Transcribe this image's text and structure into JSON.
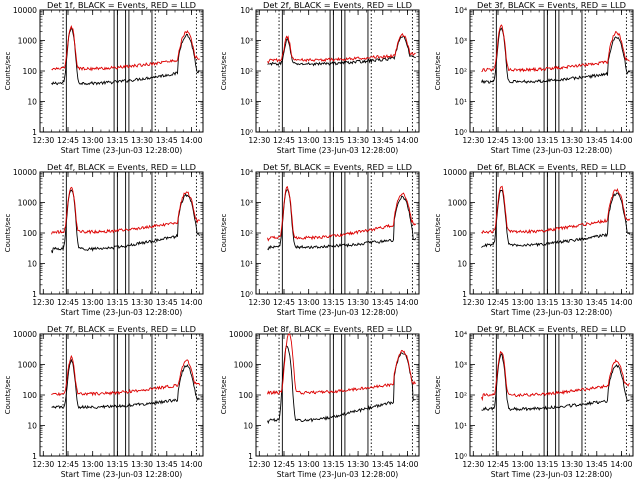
{
  "figure": {
    "x_tick_labels": [
      "12:30",
      "12:45",
      "13:00",
      "13:15",
      "13:30",
      "13:45",
      "14:00"
    ],
    "ylabel": "Counts/sec",
    "xlabel": "Start Time (23-Jun-03 12:28:00)",
    "colors": {
      "events": "#000000",
      "lld": "#dd0000",
      "axes": "#000000",
      "background": "#ffffff"
    }
  },
  "chart_data": [
    {
      "type": "line",
      "title": "Det 1f, BLACK = Events, RED = LLD",
      "tick_style": "plain",
      "ylim": [
        1,
        10000
      ],
      "ytick_labels": [
        "1",
        "10",
        "100",
        "1000",
        "10000"
      ],
      "x_minutes_range": [
        0,
        99
      ],
      "events_profile": {
        "base": 40,
        "rise_to": 85,
        "peak": 2500,
        "peak_at_min": 19,
        "secondary_peak": 1500,
        "secondary_peak_at_min": 89
      },
      "lld_profile": {
        "base": 120,
        "rise_to": 230,
        "peak": 2800,
        "peak_at_min": 19,
        "secondary_peak": 1900,
        "secondary_peak_at_min": 89
      },
      "series": [
        {
          "name": "Events",
          "color": "#000000"
        },
        {
          "name": "LLD",
          "color": "#dd0000"
        }
      ],
      "markers_min": [
        14,
        16,
        45,
        47,
        52,
        54,
        68,
        70
      ],
      "xlabel": "Start Time (23-Jun-03 12:28:00)"
    },
    {
      "type": "line",
      "title": "Det 2f, BLACK = Events, RED = LLD",
      "tick_style": "power",
      "ylim": [
        1,
        10000
      ],
      "ytick_labels": [
        "10⁰",
        "10¹",
        "10²",
        "10³",
        "10⁴"
      ],
      "x_minutes_range": [
        0,
        99
      ],
      "events_profile": {
        "base": 170,
        "rise_to": 260,
        "peak": 900,
        "peak_at_min": 19,
        "secondary_peak": 1300,
        "secondary_peak_at_min": 89
      },
      "lld_profile": {
        "base": 230,
        "rise_to": 320,
        "peak": 1100,
        "peak_at_min": 19,
        "secondary_peak": 1500,
        "secondary_peak_at_min": 89
      },
      "series": [
        {
          "name": "Events",
          "color": "#000000"
        },
        {
          "name": "LLD",
          "color": "#dd0000"
        }
      ],
      "markers_min": [
        14,
        16,
        45,
        47,
        52,
        54,
        68,
        70
      ],
      "xlabel": "Start Time (23-Jun-03 12:28:00)"
    },
    {
      "type": "line",
      "title": "Det 3f, BLACK = Events, RED = LLD",
      "tick_style": "power",
      "ylim": [
        1,
        10000
      ],
      "ytick_labels": [
        "10⁰",
        "10¹",
        "10²",
        "10³",
        "10⁴"
      ],
      "x_minutes_range": [
        0,
        99
      ],
      "events_profile": {
        "base": 45,
        "rise_to": 80,
        "peak": 2500,
        "peak_at_min": 19,
        "secondary_peak": 1300,
        "secondary_peak_at_min": 89
      },
      "lld_profile": {
        "base": 110,
        "rise_to": 200,
        "peak": 3000,
        "peak_at_min": 19,
        "secondary_peak": 1800,
        "secondary_peak_at_min": 89
      },
      "series": [
        {
          "name": "Events",
          "color": "#000000"
        },
        {
          "name": "LLD",
          "color": "#dd0000"
        }
      ],
      "markers_min": [
        14,
        16,
        45,
        47,
        52,
        54,
        68,
        70
      ],
      "xlabel": "Start Time (23-Jun-03 12:28:00)"
    },
    {
      "type": "line",
      "title": "Det 4f, BLACK = Events, RED = LLD",
      "tick_style": "plain",
      "ylim": [
        1,
        10000
      ],
      "ytick_labels": [
        "1",
        "10",
        "100",
        "1000",
        "10000"
      ],
      "x_minutes_range": [
        0,
        99
      ],
      "events_profile": {
        "base": 30,
        "rise_to": 80,
        "peak": 2800,
        "peak_at_min": 19,
        "secondary_peak": 1800,
        "secondary_peak_at_min": 89
      },
      "lld_profile": {
        "base": 110,
        "rise_to": 220,
        "peak": 3200,
        "peak_at_min": 19,
        "secondary_peak": 2200,
        "secondary_peak_at_min": 89
      },
      "series": [
        {
          "name": "Events",
          "color": "#000000"
        },
        {
          "name": "LLD",
          "color": "#dd0000"
        }
      ],
      "markers_min": [
        14,
        16,
        45,
        47,
        52,
        54,
        68,
        70
      ],
      "xlabel": "Start Time (23-Jun-03 12:28:00)"
    },
    {
      "type": "line",
      "title": "Det 5f, BLACK = Events, RED = LLD",
      "tick_style": "power",
      "ylim": [
        1,
        10000
      ],
      "ytick_labels": [
        "10⁰",
        "10¹",
        "10²",
        "10³",
        "10⁴"
      ],
      "x_minutes_range": [
        0,
        99
      ],
      "events_profile": {
        "base": 35,
        "rise_to": 60,
        "peak": 2500,
        "peak_at_min": 19,
        "secondary_peak": 1500,
        "secondary_peak_at_min": 89
      },
      "lld_profile": {
        "base": 70,
        "rise_to": 180,
        "peak": 3000,
        "peak_at_min": 19,
        "secondary_peak": 2000,
        "secondary_peak_at_min": 89
      },
      "series": [
        {
          "name": "Events",
          "color": "#000000"
        },
        {
          "name": "LLD",
          "color": "#dd0000"
        }
      ],
      "markers_min": [
        14,
        16,
        45,
        47,
        52,
        54,
        68,
        70
      ],
      "xlabel": "Start Time (23-Jun-03 12:28:00)"
    },
    {
      "type": "line",
      "title": "Det 6f, BLACK = Events, RED = LLD",
      "tick_style": "plain",
      "ylim": [
        1,
        10000
      ],
      "ytick_labels": [
        "1",
        "10",
        "100",
        "1000",
        "10000"
      ],
      "x_minutes_range": [
        0,
        99
      ],
      "events_profile": {
        "base": 40,
        "rise_to": 90,
        "peak": 2600,
        "peak_at_min": 19,
        "secondary_peak": 2000,
        "secondary_peak_at_min": 89
      },
      "lld_profile": {
        "base": 110,
        "rise_to": 260,
        "peak": 3200,
        "peak_at_min": 19,
        "secondary_peak": 2600,
        "secondary_peak_at_min": 89
      },
      "series": [
        {
          "name": "Events",
          "color": "#000000"
        },
        {
          "name": "LLD",
          "color": "#dd0000"
        }
      ],
      "markers_min": [
        14,
        16,
        45,
        47,
        52,
        54,
        68,
        70
      ],
      "xlabel": "Start Time (23-Jun-03 12:28:00)"
    },
    {
      "type": "line",
      "title": "Det 7f, BLACK = Events, RED = LLD",
      "tick_style": "plain",
      "ylim": [
        1,
        10000
      ],
      "ytick_labels": [
        "1",
        "10",
        "100",
        "1000",
        "10000"
      ],
      "x_minutes_range": [
        0,
        99
      ],
      "events_profile": {
        "base": 40,
        "rise_to": 70,
        "peak": 1300,
        "peak_at_min": 19,
        "secondary_peak": 900,
        "secondary_peak_at_min": 89
      },
      "lld_profile": {
        "base": 110,
        "rise_to": 210,
        "peak": 1600,
        "peak_at_min": 19,
        "secondary_peak": 1300,
        "secondary_peak_at_min": 89
      },
      "series": [
        {
          "name": "Events",
          "color": "#000000"
        },
        {
          "name": "LLD",
          "color": "#dd0000"
        }
      ],
      "markers_min": [
        14,
        16,
        45,
        47,
        52,
        54,
        68,
        70
      ],
      "xlabel": "Start Time (23-Jun-03 12:28:00)"
    },
    {
      "type": "line",
      "title": "Det 8f, BLACK = Events, RED = LLD",
      "tick_style": "plain",
      "ylim": [
        1,
        10000
      ],
      "ytick_labels": [
        "1",
        "10",
        "100",
        "1000",
        "10000"
      ],
      "x_minutes_range": [
        0,
        99
      ],
      "events_profile": {
        "base": 15,
        "rise_to": 60,
        "peak": 4000,
        "peak_at_min": 19,
        "secondary_peak": 2500,
        "secondary_peak_at_min": 89
      },
      "lld_profile": {
        "base": 120,
        "rise_to": 230,
        "peak": 10000,
        "peak_at_min": 20,
        "secondary_peak": 2800,
        "secondary_peak_at_min": 89
      },
      "series": [
        {
          "name": "Events",
          "color": "#000000"
        },
        {
          "name": "LLD",
          "color": "#dd0000"
        }
      ],
      "markers_min": [
        14,
        16,
        45,
        47,
        52,
        54,
        68,
        70
      ],
      "xlabel": "Start Time (23-Jun-03 12:28:00)"
    },
    {
      "type": "line",
      "title": "Det 9f, BLACK = Events, RED = LLD",
      "tick_style": "power",
      "ylim": [
        1,
        10000
      ],
      "ytick_labels": [
        "10⁰",
        "10¹",
        "10²",
        "10³",
        "10⁴"
      ],
      "x_minutes_range": [
        0,
        99
      ],
      "events_profile": {
        "base": 35,
        "rise_to": 65,
        "peak": 2000,
        "peak_at_min": 19,
        "secondary_peak": 900,
        "secondary_peak_at_min": 89
      },
      "lld_profile": {
        "base": 100,
        "rise_to": 200,
        "peak": 2600,
        "peak_at_min": 19,
        "secondary_peak": 1300,
        "secondary_peak_at_min": 89
      },
      "series": [
        {
          "name": "Events",
          "color": "#000000"
        },
        {
          "name": "LLD",
          "color": "#dd0000"
        }
      ],
      "markers_min": [
        14,
        16,
        45,
        47,
        52,
        54,
        68,
        70
      ],
      "xlabel": "Start Time (23-Jun-03 12:28:00)"
    }
  ]
}
